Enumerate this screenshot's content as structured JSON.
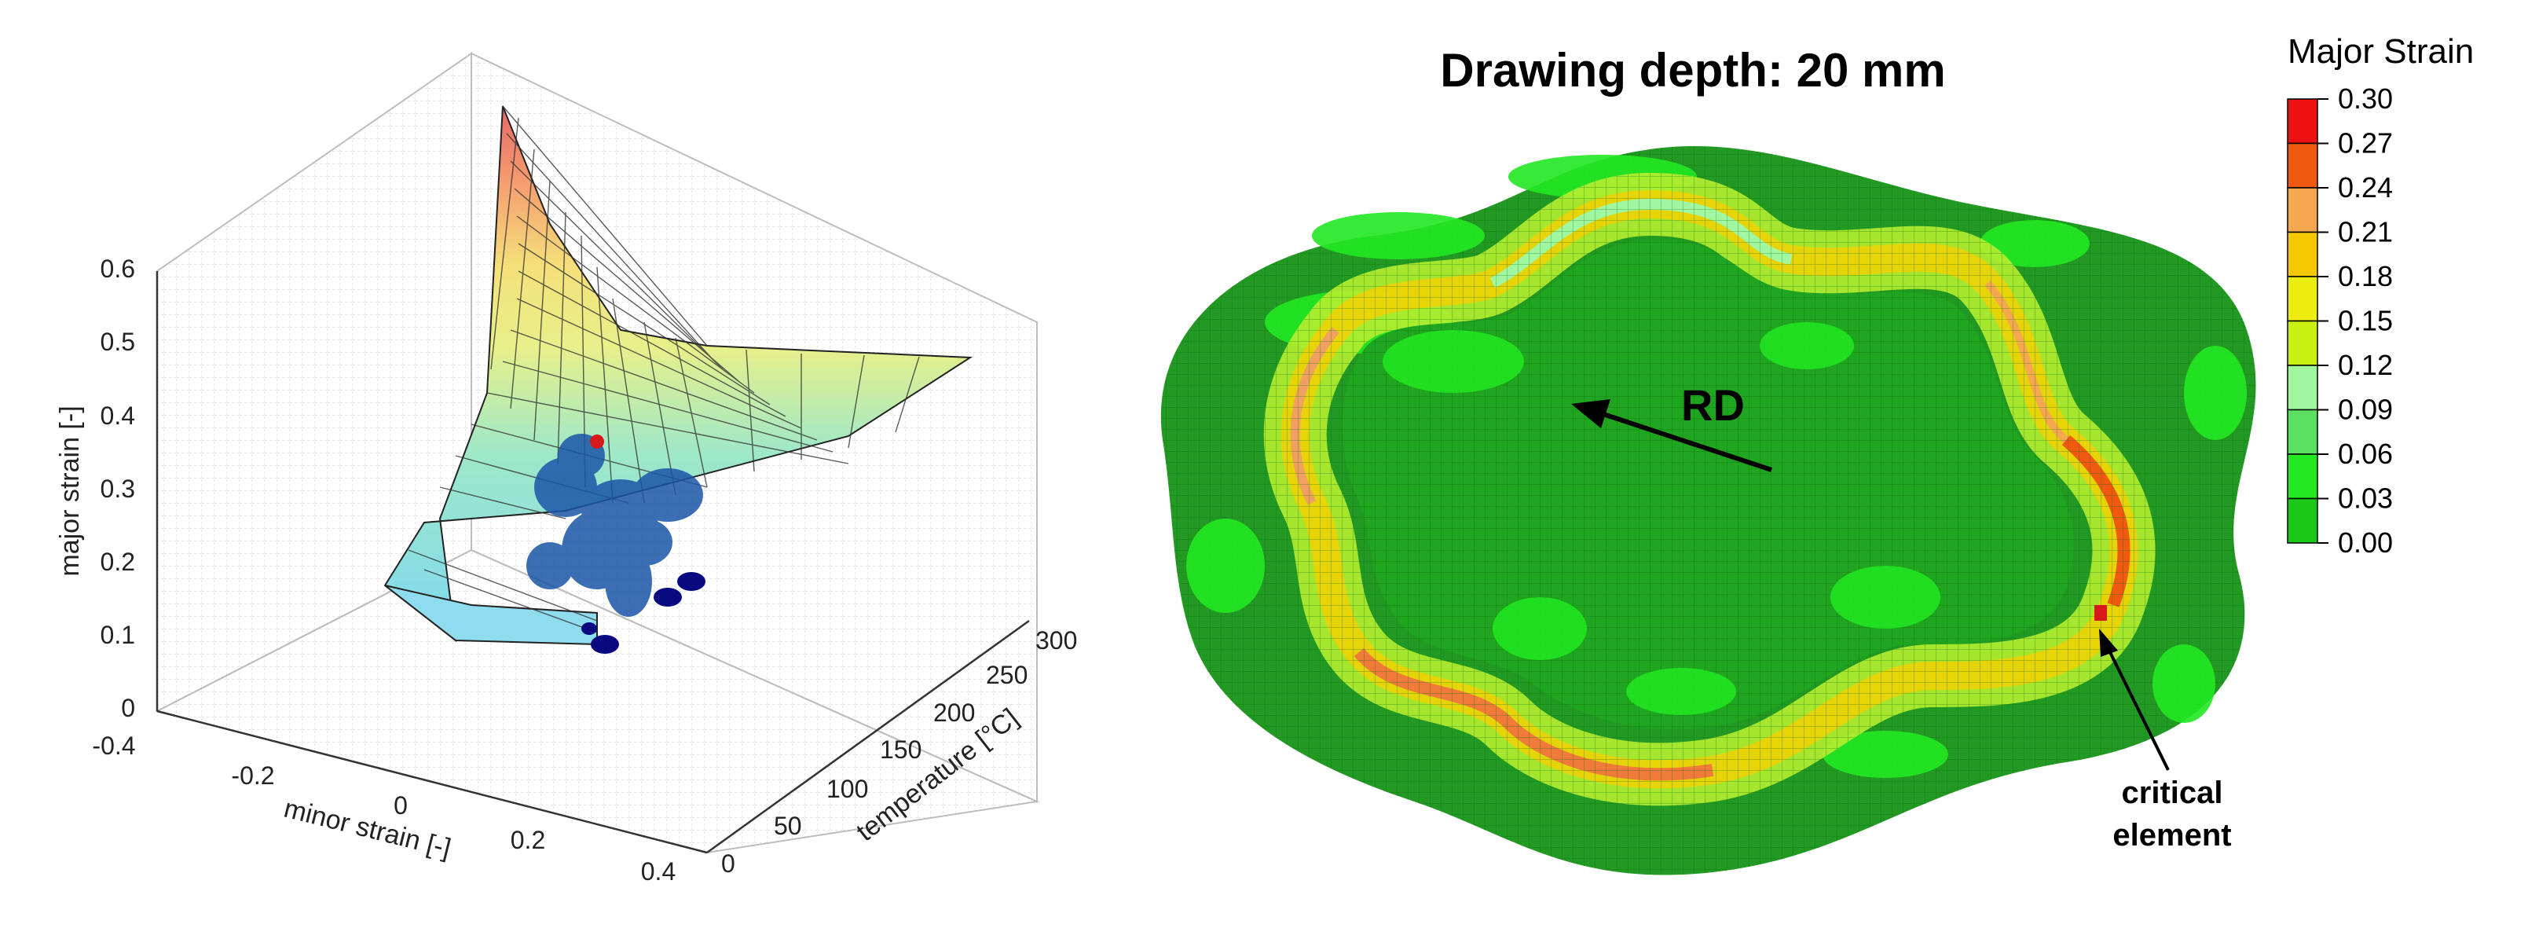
{
  "flc_plot": {
    "ylabel": "major strain [-]",
    "xlabel": "minor strain [-]",
    "zlabel": "temperature [°C]",
    "y_ticks": [
      "0",
      "0.1",
      "0.2",
      "0.3",
      "0.4",
      "0.5",
      "0.6"
    ],
    "x_ticks": [
      "-0.4",
      "-0.2",
      "0",
      "0.2",
      "0.4"
    ],
    "z_ticks": [
      "0",
      "50",
      "100",
      "150",
      "200",
      "250",
      "300"
    ]
  },
  "fem_plot": {
    "title": "Drawing depth: 20 mm",
    "rd_label": "RD",
    "critical_label_line1": "critical",
    "critical_label_line2": "element"
  },
  "colorbar": {
    "title": "Major Strain",
    "levels": [
      "0.30",
      "0.27",
      "0.24",
      "0.21",
      "0.18",
      "0.15",
      "0.12",
      "0.09",
      "0.06",
      "0.03",
      "0.00"
    ],
    "colors": [
      "#ee1111",
      "#f05a10",
      "#f6a850",
      "#f5c800",
      "#ecec10",
      "#c8f010",
      "#a0f7a0",
      "#5ce060",
      "#22e822",
      "#19c819"
    ]
  }
}
